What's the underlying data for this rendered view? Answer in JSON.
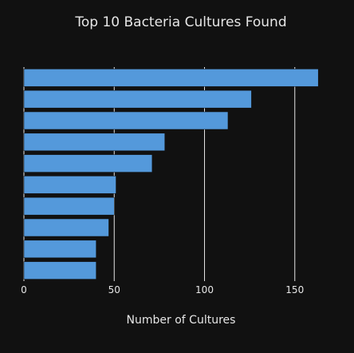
{
  "chart_data": {
    "type": "bar",
    "orientation": "horizontal",
    "title": "Top 10 Bacteria Cultures Found",
    "xlabel": "Number of Cultures",
    "ylabel": "",
    "categories": [
      "",
      "",
      "",
      "",
      "",
      "",
      "",
      "",
      "",
      ""
    ],
    "values": [
      163,
      126,
      113,
      78,
      71,
      51,
      50,
      47,
      40,
      40
    ],
    "xlim": [
      0,
      166
    ],
    "xticks": [
      0,
      50,
      100,
      150
    ],
    "grid": true,
    "legend": "none",
    "colors": {
      "background": "#111111",
      "bar": "#5499db",
      "bar_edge": "#111111",
      "grid": "#e6e6e6",
      "text": "#e6e6e6"
    }
  }
}
